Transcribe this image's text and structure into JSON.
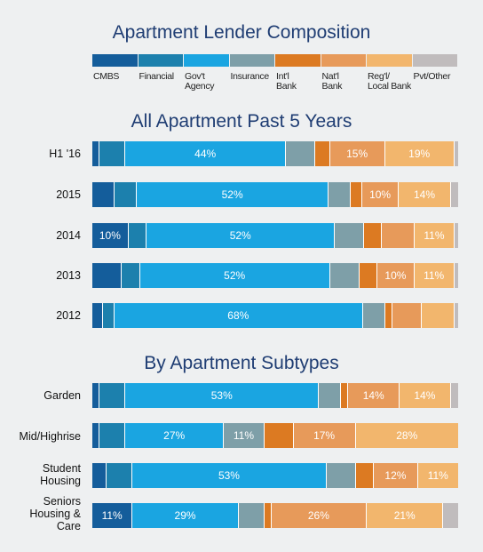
{
  "chart_data": {
    "type": "bar",
    "stacked": "100%",
    "orientation": "horizontal",
    "title": "Apartment Lender Composition",
    "legend_placement": "top",
    "series": [
      {
        "name": "CMBS",
        "color": "#145d9b"
      },
      {
        "name": "Financial",
        "color": "#1c80ad"
      },
      {
        "name": "Gov't Agency",
        "color": "#1aa5e1"
      },
      {
        "name": "Insurance",
        "color": "#7e9fa8"
      },
      {
        "name": "Int'l Bank",
        "color": "#dc7a22"
      },
      {
        "name": "Nat'l Bank",
        "color": "#e79a5a"
      },
      {
        "name": "Reg'l/ Local Bank",
        "color": "#f2b66d"
      },
      {
        "name": "Pvt/Other",
        "color": "#c0bcbd"
      }
    ],
    "groups": [
      {
        "title": "All Apartment Past 5 Years",
        "rows": [
          {
            "label": "H1 '16",
            "values": [
              2,
              7,
              44,
              8,
              4,
              15,
              19,
              1
            ],
            "labels": [
              "",
              "",
              "44%",
              "",
              "",
              "15%",
              "19%",
              ""
            ]
          },
          {
            "label": "2015",
            "values": [
              6,
              6,
              52,
              6,
              3,
              10,
              14,
              2
            ],
            "labels": [
              "",
              "",
              "52%",
              "",
              "",
              "10%",
              "14%",
              ""
            ]
          },
          {
            "label": "2014",
            "values": [
              10,
              5,
              52,
              8,
              5,
              9,
              11,
              1
            ],
            "labels": [
              "10%",
              "",
              "52%",
              "",
              "",
              "",
              "11%",
              ""
            ]
          },
          {
            "label": "2013",
            "values": [
              8,
              5,
              52,
              8,
              5,
              10,
              11,
              1
            ],
            "labels": [
              "",
              "",
              "52%",
              "",
              "",
              "10%",
              "11%",
              ""
            ]
          },
          {
            "label": "2012",
            "values": [
              3,
              3,
              68,
              6,
              2,
              8,
              9,
              1
            ],
            "labels": [
              "",
              "",
              "68%",
              "",
              "",
              "",
              "",
              ""
            ]
          }
        ]
      },
      {
        "title": "By Apartment Subtypes",
        "rows": [
          {
            "label": "Garden",
            "values": [
              2,
              7,
              53,
              6,
              2,
              14,
              14,
              2
            ],
            "labels": [
              "",
              "",
              "53%",
              "",
              "",
              "14%",
              "14%",
              ""
            ]
          },
          {
            "label": "Mid/Highrise",
            "values": [
              2,
              7,
              27,
              11,
              8,
              17,
              28,
              0
            ],
            "labels": [
              "",
              "",
              "27%",
              "11%",
              "",
              "17%",
              "28%",
              ""
            ]
          },
          {
            "label": "Student\nHousing",
            "values": [
              4,
              7,
              53,
              8,
              5,
              12,
              11,
              0
            ],
            "labels": [
              "",
              "",
              "53%",
              "",
              "",
              "12%",
              "11%",
              ""
            ]
          },
          {
            "label": "Seniors\nHousing &\nCare",
            "values": [
              11,
              0,
              29,
              7,
              2,
              26,
              21,
              4
            ],
            "labels": [
              "11%",
              "",
              "29%",
              "",
              "",
              "26%",
              "21%",
              ""
            ]
          }
        ]
      }
    ]
  }
}
